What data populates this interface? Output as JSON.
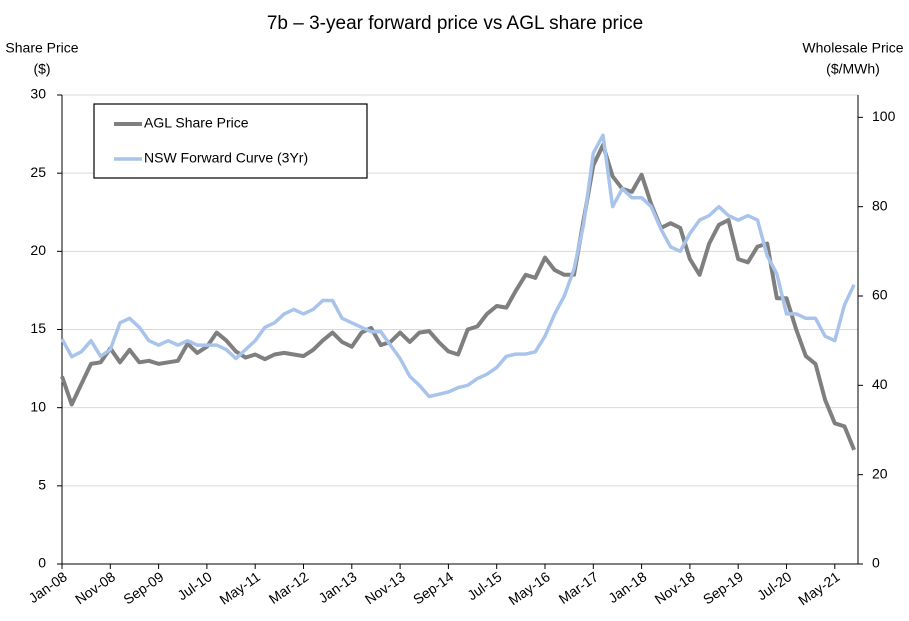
{
  "chart_data": {
    "type": "line",
    "title": "7b – 3-year forward price vs AGL share price",
    "y_label": [
      "Share Price",
      "($)"
    ],
    "y2_label": [
      "Wholesale Price",
      "($/MWh)"
    ],
    "categories": [
      "Jan-08",
      null,
      null,
      null,
      null,
      "Nov-08",
      null,
      null,
      null,
      null,
      "Sep-09",
      null,
      null,
      null,
      null,
      "Jul-10",
      null,
      null,
      null,
      null,
      "May-11",
      null,
      null,
      null,
      null,
      "Mar-12",
      null,
      null,
      null,
      null,
      "Jan-13",
      null,
      null,
      null,
      null,
      "Nov-13",
      null,
      null,
      null,
      null,
      "Sep-14",
      null,
      null,
      null,
      null,
      "Jul-15",
      null,
      null,
      null,
      null,
      "May-16",
      null,
      null,
      null,
      null,
      "Mar-17",
      null,
      null,
      null,
      null,
      "Jan-18",
      null,
      null,
      null,
      null,
      "Nov-18",
      null,
      null,
      null,
      null,
      "Sep-19",
      null,
      null,
      null,
      null,
      "Jul-20",
      null,
      null,
      null,
      null,
      "May-21",
      null,
      null
    ],
    "series": [
      {
        "name": "AGL Share Price",
        "color": "#7f7f7f",
        "axis": "y",
        "values": [
          12,
          10.2,
          11.5,
          12.8,
          12.9,
          13.8,
          12.9,
          13.7,
          12.9,
          13.0,
          12.8,
          12.9,
          13.0,
          14.1,
          13.5,
          13.9,
          14.8,
          14.3,
          13.6,
          13.2,
          13.4,
          13.1,
          13.4,
          13.5,
          13.4,
          13.3,
          13.7,
          14.3,
          14.8,
          14.2,
          13.9,
          14.8,
          15.1,
          14.0,
          14.2,
          14.8,
          14.2,
          14.8,
          14.9,
          14.2,
          13.6,
          13.4,
          15.0,
          15.2,
          16.0,
          16.5,
          16.4,
          17.5,
          18.5,
          18.3,
          19.6,
          18.8,
          18.5,
          18.5,
          22,
          25.5,
          26.8,
          24.8,
          24.0,
          23.8,
          24.9,
          23.0,
          21.5,
          21.8,
          21.5,
          19.5,
          18.5,
          20.5,
          21.7,
          22.0,
          19.5,
          19.3,
          20.3,
          20.5,
          17.0,
          17.0,
          15.0,
          13.3,
          12.8,
          10.5,
          9.0,
          8.8,
          7.3
        ]
      },
      {
        "name": "NSW Forward Curve (3Yr)",
        "color": "#a9c4eb",
        "axis": "y2",
        "values": [
          50.4,
          46.4,
          47.5,
          50,
          46.5,
          48,
          54,
          55,
          53,
          50,
          49,
          50,
          49,
          50,
          49,
          49,
          49,
          48,
          46,
          48,
          50,
          53,
          54,
          56,
          57,
          56,
          57,
          59,
          59,
          55,
          54,
          53,
          52,
          52,
          49,
          46,
          42,
          40,
          37.5,
          38,
          38.5,
          39.5,
          40,
          41.5,
          42.5,
          44,
          46.5,
          47,
          47,
          47.5,
          51,
          56,
          60,
          66,
          76,
          92,
          96,
          80,
          84,
          82,
          82,
          80,
          75,
          71,
          70,
          74,
          77,
          78,
          80,
          78,
          77,
          78,
          77,
          69,
          65,
          56,
          56,
          55,
          55,
          51,
          50,
          58,
          62.5
        ]
      }
    ],
    "ylim": [
      0,
      30
    ],
    "yticks": [
      0,
      5,
      10,
      15,
      20,
      25,
      30
    ],
    "y2lim": [
      0,
      105
    ],
    "y2ticks": [
      0,
      20,
      40,
      60,
      80,
      100
    ],
    "grid": true,
    "legend": "upper left"
  }
}
